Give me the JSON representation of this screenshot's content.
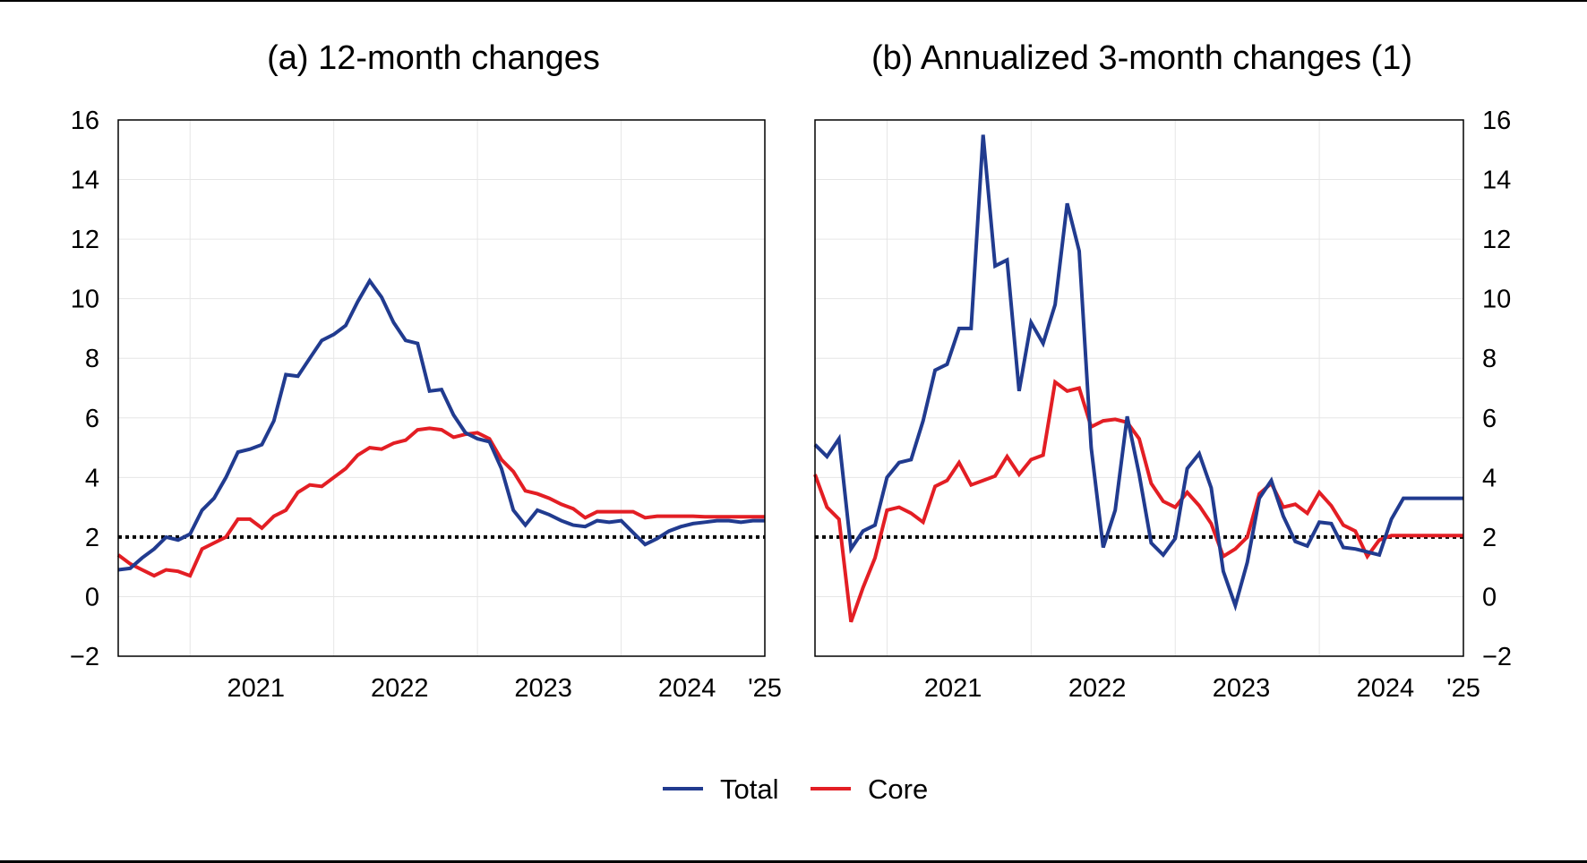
{
  "colors": {
    "total": "#213b8f",
    "core": "#e31e24",
    "target": "#000000",
    "grid": "#e6e6e6",
    "axis": "#000000"
  },
  "legend": {
    "items": [
      {
        "label": "Total",
        "color": "#213b8f"
      },
      {
        "label": "Core",
        "color": "#e31e24"
      }
    ]
  },
  "chart_data": [
    {
      "type": "line",
      "title": "(a) 12-month changes",
      "xlabel": "",
      "ylabel": "",
      "ylim": [
        -2,
        16
      ],
      "yticks": [
        -2,
        0,
        2,
        4,
        6,
        8,
        10,
        12,
        14,
        16
      ],
      "ytick_labels": [
        "−2",
        "0",
        "2",
        "4",
        "6",
        "8",
        "10",
        "12",
        "14",
        "16"
      ],
      "x_axis": "date",
      "xlim": [
        "2020-07",
        "2025-01"
      ],
      "xticks": [
        "2021",
        "2022",
        "2023",
        "2024",
        "'25"
      ],
      "y_axis_side": "left",
      "grid": true,
      "reference_line": 2,
      "series": [
        {
          "name": "Total",
          "x": [
            "2020-07",
            "2020-08",
            "2020-09",
            "2020-10",
            "2020-11",
            "2020-12",
            "2021-01",
            "2021-02",
            "2021-03",
            "2021-04",
            "2021-05",
            "2021-06",
            "2021-07",
            "2021-08",
            "2021-09",
            "2021-10",
            "2021-11",
            "2021-12",
            "2022-01",
            "2022-02",
            "2022-03",
            "2022-04",
            "2022-05",
            "2022-06",
            "2022-07",
            "2022-08",
            "2022-09",
            "2022-10",
            "2022-11",
            "2022-12",
            "2023-01",
            "2023-02",
            "2023-03",
            "2023-04",
            "2023-05",
            "2023-06",
            "2023-07",
            "2023-08",
            "2023-09",
            "2023-10",
            "2023-11",
            "2023-12",
            "2024-01",
            "2024-02",
            "2024-03",
            "2024-04",
            "2024-05",
            "2024-06",
            "2024-07",
            "2024-08",
            "2024-09",
            "2024-10",
            "2024-11",
            "2024-12",
            "2025-01"
          ],
          "values": [
            0.9,
            0.95,
            1.3,
            1.6,
            2.0,
            1.9,
            2.1,
            2.9,
            3.3,
            4.0,
            4.85,
            4.95,
            5.1,
            5.9,
            7.45,
            7.4,
            8.0,
            8.6,
            8.8,
            9.1,
            9.9,
            10.6,
            10.05,
            9.2,
            8.6,
            8.5,
            6.9,
            6.95,
            6.1,
            5.5,
            5.3,
            5.2,
            4.3,
            2.9,
            2.4,
            2.9,
            2.75,
            2.55,
            2.4,
            2.35,
            2.55,
            2.5,
            2.55,
            2.15,
            1.75,
            1.95,
            2.2,
            2.35,
            2.45,
            2.5,
            2.55,
            2.55,
            2.5,
            2.55,
            2.55
          ]
        },
        {
          "name": "Core",
          "x": [
            "2020-07",
            "2020-08",
            "2020-09",
            "2020-10",
            "2020-11",
            "2020-12",
            "2021-01",
            "2021-02",
            "2021-03",
            "2021-04",
            "2021-05",
            "2021-06",
            "2021-07",
            "2021-08",
            "2021-09",
            "2021-10",
            "2021-11",
            "2021-12",
            "2022-01",
            "2022-02",
            "2022-03",
            "2022-04",
            "2022-05",
            "2022-06",
            "2022-07",
            "2022-08",
            "2022-09",
            "2022-10",
            "2022-11",
            "2022-12",
            "2023-01",
            "2023-02",
            "2023-03",
            "2023-04",
            "2023-05",
            "2023-06",
            "2023-07",
            "2023-08",
            "2023-09",
            "2023-10",
            "2023-11",
            "2023-12",
            "2024-01",
            "2024-02",
            "2024-03",
            "2024-04",
            "2024-05",
            "2024-06",
            "2024-07",
            "2024-08",
            "2024-09",
            "2024-10",
            "2024-11",
            "2024-12",
            "2025-01"
          ],
          "values": [
            1.4,
            1.1,
            0.9,
            0.7,
            0.9,
            0.85,
            0.7,
            1.6,
            1.8,
            2.0,
            2.6,
            2.6,
            2.3,
            2.7,
            2.9,
            3.5,
            3.75,
            3.7,
            4.0,
            4.3,
            4.75,
            5.0,
            4.95,
            5.15,
            5.25,
            5.6,
            5.65,
            5.6,
            5.35,
            5.45,
            5.5,
            5.3,
            4.6,
            4.2,
            3.55,
            3.45,
            3.3,
            3.1,
            2.95,
            2.65,
            2.85,
            2.85,
            2.85,
            2.85,
            2.65,
            2.7,
            2.7,
            2.7,
            2.7,
            2.68,
            2.68,
            2.68,
            2.68,
            2.68,
            2.68
          ]
        }
      ]
    },
    {
      "type": "line",
      "title": "(b) Annualized 3-month changes (1)",
      "xlabel": "",
      "ylabel": "",
      "ylim": [
        -2,
        16
      ],
      "yticks": [
        -2,
        0,
        2,
        4,
        6,
        8,
        10,
        12,
        14,
        16
      ],
      "ytick_labels": [
        "−2",
        "0",
        "2",
        "4",
        "6",
        "8",
        "10",
        "12",
        "14",
        "16"
      ],
      "x_axis": "date",
      "xlim": [
        "2020-07",
        "2025-01"
      ],
      "xticks": [
        "2021",
        "2022",
        "2023",
        "2024",
        "'25"
      ],
      "y_axis_side": "right",
      "grid": true,
      "reference_line": 2,
      "series": [
        {
          "name": "Total",
          "x": [
            "2020-07",
            "2020-08",
            "2020-09",
            "2020-10",
            "2020-11",
            "2020-12",
            "2021-01",
            "2021-02",
            "2021-03",
            "2021-04",
            "2021-05",
            "2021-06",
            "2021-07",
            "2021-08",
            "2021-09",
            "2021-10",
            "2021-11",
            "2021-12",
            "2022-01",
            "2022-02",
            "2022-03",
            "2022-04",
            "2022-05",
            "2022-06",
            "2022-07",
            "2022-08",
            "2022-09",
            "2022-10",
            "2022-11",
            "2022-12",
            "2023-01",
            "2023-02",
            "2023-03",
            "2023-04",
            "2023-05",
            "2023-06",
            "2023-07",
            "2023-08",
            "2023-09",
            "2023-10",
            "2023-11",
            "2023-12",
            "2024-01",
            "2024-02",
            "2024-03",
            "2024-04",
            "2024-05",
            "2024-06",
            "2024-07",
            "2024-08",
            "2024-09",
            "2024-10",
            "2024-11",
            "2024-12",
            "2025-01"
          ],
          "values": [
            5.1,
            4.7,
            5.3,
            1.6,
            2.2,
            2.4,
            4.0,
            4.5,
            4.6,
            5.9,
            7.6,
            7.8,
            9.0,
            9.0,
            15.5,
            11.1,
            11.3,
            6.9,
            9.2,
            8.5,
            9.8,
            13.2,
            11.6,
            5.0,
            1.65,
            2.9,
            6.05,
            4.1,
            1.8,
            1.4,
            1.95,
            4.3,
            4.8,
            3.65,
            0.85,
            -0.3,
            1.15,
            3.3,
            3.9,
            2.7,
            1.85,
            1.7,
            2.5,
            2.45,
            1.65,
            1.6,
            1.5,
            1.4,
            2.6,
            3.3,
            3.3,
            3.3,
            3.3,
            3.3,
            3.3
          ]
        },
        {
          "name": "Core",
          "x": [
            "2020-07",
            "2020-08",
            "2020-09",
            "2020-10",
            "2020-11",
            "2020-12",
            "2021-01",
            "2021-02",
            "2021-03",
            "2021-04",
            "2021-05",
            "2021-06",
            "2021-07",
            "2021-08",
            "2021-09",
            "2021-10",
            "2021-11",
            "2021-12",
            "2022-01",
            "2022-02",
            "2022-03",
            "2022-04",
            "2022-05",
            "2022-06",
            "2022-07",
            "2022-08",
            "2022-09",
            "2022-10",
            "2022-11",
            "2022-12",
            "2023-01",
            "2023-02",
            "2023-03",
            "2023-04",
            "2023-05",
            "2023-06",
            "2023-07",
            "2023-08",
            "2023-09",
            "2023-10",
            "2023-11",
            "2023-12",
            "2024-01",
            "2024-02",
            "2024-03",
            "2024-04",
            "2024-05",
            "2024-06",
            "2024-07",
            "2024-08",
            "2024-09",
            "2024-10",
            "2024-11",
            "2024-12",
            "2025-01"
          ],
          "values": [
            4.1,
            3.0,
            2.6,
            -0.85,
            0.3,
            1.3,
            2.9,
            3.0,
            2.8,
            2.5,
            3.7,
            3.9,
            4.5,
            3.75,
            3.9,
            4.05,
            4.7,
            4.1,
            4.6,
            4.75,
            7.2,
            6.9,
            7.0,
            5.7,
            5.9,
            5.95,
            5.85,
            5.3,
            3.8,
            3.2,
            3.0,
            3.5,
            3.05,
            2.45,
            1.35,
            1.6,
            2.0,
            3.45,
            3.8,
            3.0,
            3.1,
            2.8,
            3.5,
            3.05,
            2.4,
            2.2,
            1.35,
            1.9,
            2.05,
            2.05,
            2.05,
            2.05,
            2.05,
            2.05,
            2.05
          ]
        }
      ]
    }
  ]
}
